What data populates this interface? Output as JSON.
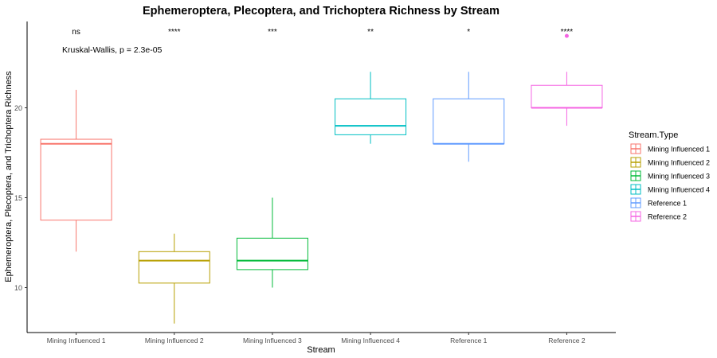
{
  "chart_data": {
    "type": "boxplot",
    "title": "Ephemeroptera, Plecoptera, and Trichoptera  Richness by Stream",
    "xlabel": "Stream",
    "ylabel": "Ephemeroptera, Plecoptera, and Trichoptera Richness",
    "ylim": [
      7.5,
      24.8
    ],
    "yticks": [
      10,
      15,
      20
    ],
    "grid": false,
    "categories": [
      "Mining Influenced 1",
      "Mining Influenced 2",
      "Mining Influenced 3",
      "Mining Influenced 4",
      "Reference 1",
      "Reference 2"
    ],
    "boxes": [
      {
        "name": "Mining Influenced 1",
        "min": 12,
        "q1": 13.75,
        "median": 18,
        "q3": 18.25,
        "max": 21,
        "outliers": [],
        "color": "#F8766D",
        "significance": "ns"
      },
      {
        "name": "Mining Influenced 2",
        "min": 8,
        "q1": 10.25,
        "median": 11.5,
        "q3": 12,
        "max": 13,
        "outliers": [],
        "color": "#B79F00",
        "significance": "****"
      },
      {
        "name": "Mining Influenced 3",
        "min": 10,
        "q1": 11,
        "median": 11.5,
        "q3": 12.75,
        "max": 15,
        "outliers": [],
        "color": "#00BA38",
        "significance": "***"
      },
      {
        "name": "Mining Influenced 4",
        "min": 18,
        "q1": 18.5,
        "median": 19,
        "q3": 20.5,
        "max": 22,
        "outliers": [],
        "color": "#00BFC4",
        "significance": "**"
      },
      {
        "name": "Reference 1",
        "min": 17,
        "q1": 18,
        "median": 18,
        "q3": 20.5,
        "max": 22,
        "outliers": [],
        "color": "#619CFF",
        "significance": "*"
      },
      {
        "name": "Reference 2",
        "min": 19,
        "q1": 20,
        "median": 20,
        "q3": 21.25,
        "max": 22,
        "outliers": [
          24
        ],
        "color": "#F564E3",
        "significance": "****"
      }
    ],
    "annotation": "Kruskal-Wallis, p = 2.3e-05",
    "legend": {
      "title": "Stream.Type",
      "position": "right",
      "entries": [
        "Mining Influenced 1",
        "Mining Influenced 2",
        "Mining Influenced 3",
        "Mining Influenced 4",
        "Reference 1",
        "Reference 2"
      ]
    }
  }
}
